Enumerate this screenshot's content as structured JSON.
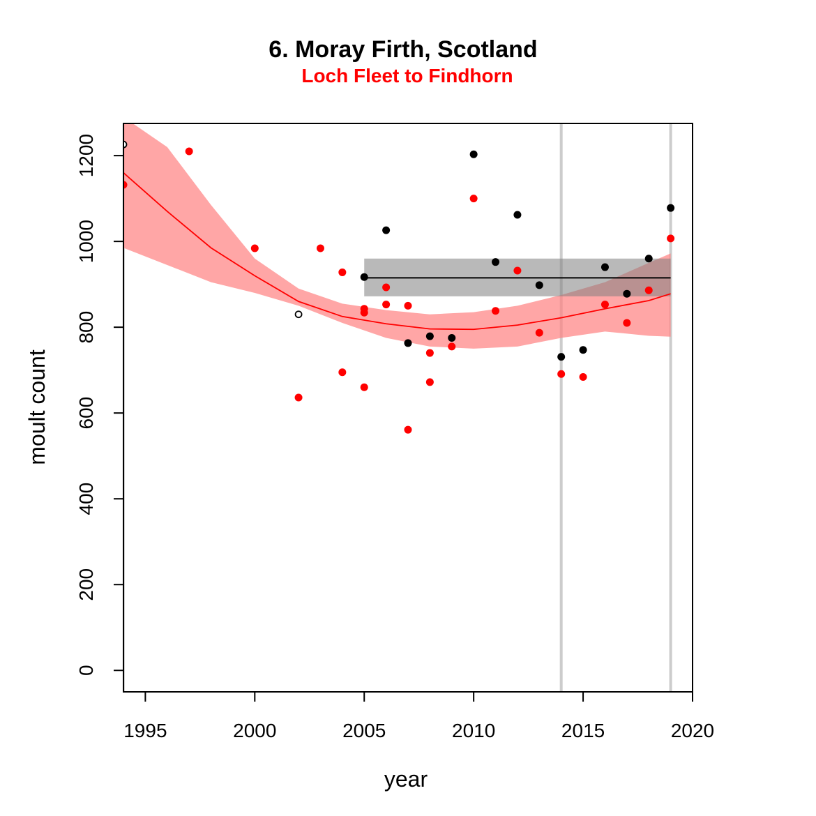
{
  "chart_data": {
    "type": "scatter",
    "title": "6. Moray Firth, Scotland",
    "subtitle": "Loch Fleet to Findhorn",
    "xlabel": "year",
    "ylabel": "moult count",
    "xlim": [
      1994,
      2020
    ],
    "ylim": [
      -50,
      1275
    ],
    "x_ticks": [
      1995,
      2000,
      2005,
      2010,
      2015,
      2020
    ],
    "y_ticks": [
      0,
      200,
      400,
      600,
      800,
      1000,
      1200
    ],
    "grid": false,
    "colors": {
      "subarea": "#ff0000",
      "subarea_band": "#ff8080",
      "overall": "#000000",
      "overall_band": "#808080",
      "reference_lines": "#cccccc"
    },
    "reference_lines_x": [
      1994,
      2014,
      2019
    ],
    "series": [
      {
        "marker": "filled-circle",
        "color": "#ff0000",
        "points": [
          [
            1994,
            1132
          ],
          [
            1997,
            1210
          ],
          [
            2000,
            984
          ],
          [
            2002,
            636
          ],
          [
            2003,
            984
          ],
          [
            2004,
            928
          ],
          [
            2004,
            695
          ],
          [
            2005,
            843
          ],
          [
            2005,
            834
          ],
          [
            2005,
            660
          ],
          [
            2006,
            893
          ],
          [
            2006,
            853
          ],
          [
            2007,
            850
          ],
          [
            2007,
            561
          ],
          [
            2008,
            740
          ],
          [
            2008,
            672
          ],
          [
            2009,
            755
          ],
          [
            2010,
            1100
          ],
          [
            2011,
            838
          ],
          [
            2012,
            932
          ],
          [
            2013,
            787
          ],
          [
            2014,
            691
          ],
          [
            2015,
            684
          ],
          [
            2016,
            853
          ],
          [
            2017,
            810
          ],
          [
            2018,
            886
          ],
          [
            2019,
            1007
          ]
        ]
      },
      {
        "marker": "filled-circle",
        "color": "#000000",
        "points": [
          [
            2005,
            917
          ],
          [
            2006,
            1026
          ],
          [
            2007,
            763
          ],
          [
            2008,
            779
          ],
          [
            2009,
            775
          ],
          [
            2010,
            1203
          ],
          [
            2011,
            952
          ],
          [
            2012,
            1062
          ],
          [
            2013,
            898
          ],
          [
            2014,
            731
          ],
          [
            2015,
            747
          ],
          [
            2016,
            940
          ],
          [
            2017,
            878
          ],
          [
            2018,
            960
          ],
          [
            2019,
            1078
          ]
        ]
      },
      {
        "marker": "open-circle",
        "color": "#000000",
        "points": [
          [
            1994,
            1226
          ],
          [
            2002,
            830
          ]
        ]
      }
    ],
    "trend": {
      "color": "#ff0000",
      "x": [
        1994,
        1996,
        1998,
        2000,
        2002,
        2004,
        2006,
        2008,
        2010,
        2012,
        2014,
        2016,
        2018,
        2019
      ],
      "y": [
        1160,
        1070,
        985,
        920,
        860,
        825,
        808,
        796,
        795,
        805,
        822,
        843,
        862,
        878
      ],
      "lower": [
        985,
        945,
        905,
        880,
        850,
        810,
        775,
        755,
        750,
        755,
        775,
        790,
        780,
        778
      ],
      "upper": [
        1290,
        1220,
        1085,
        960,
        890,
        855,
        840,
        830,
        835,
        850,
        875,
        905,
        950,
        972
      ]
    },
    "overall_mean": {
      "color": "#000000",
      "x": [
        2005,
        2019
      ],
      "value": 915,
      "band": [
        872,
        960
      ]
    }
  }
}
